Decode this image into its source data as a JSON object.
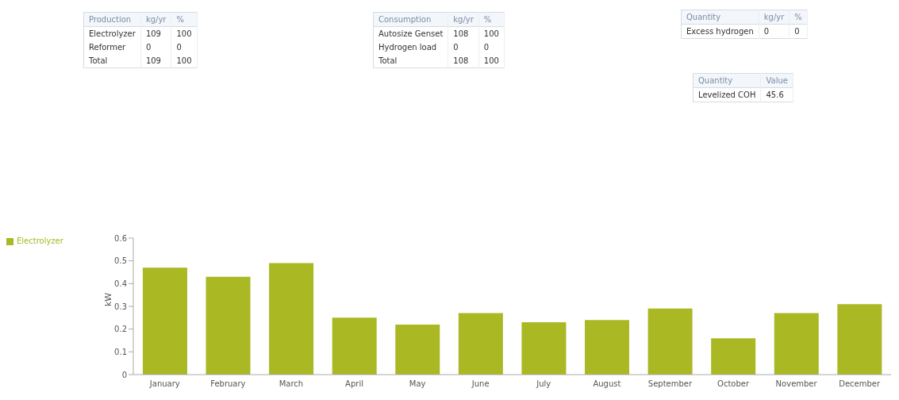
{
  "chart_data": [
    {
      "type": "heatmap",
      "title": "Production",
      "categories": [
        "kg/yr",
        "%"
      ],
      "y_categories": [
        "Electrolyzer",
        "Reformer",
        "Total"
      ],
      "cells": [
        [
          109,
          100
        ],
        [
          0,
          0
        ],
        [
          109,
          100
        ]
      ],
      "data_labels": true
    },
    {
      "type": "heatmap",
      "title": "Consumption",
      "categories": [
        "kg/yr",
        "%"
      ],
      "y_categories": [
        "Autosize Genset",
        "Hydrogen load",
        "Total"
      ],
      "cells": [
        [
          108,
          100
        ],
        [
          0,
          0
        ],
        [
          108,
          100
        ]
      ],
      "data_labels": true
    },
    {
      "type": "heatmap",
      "title": "Quantity",
      "categories": [
        "kg/yr",
        "%"
      ],
      "y_categories": [
        "Excess hydrogen"
      ],
      "cells": [
        [
          0,
          0
        ]
      ],
      "data_labels": true
    },
    {
      "type": "heatmap",
      "title": "Quantity",
      "categories": [
        "Value"
      ],
      "y_categories": [
        "Levelized COH"
      ],
      "cells": [
        [
          45.6
        ]
      ],
      "data_labels": true
    },
    {
      "type": "bar",
      "categories": [
        "January",
        "February",
        "March",
        "April",
        "May",
        "June",
        "July",
        "August",
        "September",
        "October",
        "November",
        "December"
      ],
      "ylabel": "kW",
      "ylim": [
        0,
        0.6
      ],
      "yticks": [
        0,
        0.1,
        0.2,
        0.3,
        0.4,
        0.5,
        0.6
      ],
      "legend": "top left",
      "series": [
        {
          "name": "Electrolyzer",
          "color": "#a9b823",
          "values": [
            0.47,
            0.43,
            0.49,
            0.25,
            0.22,
            0.27,
            0.23,
            0.24,
            0.29,
            0.16,
            0.27,
            0.31
          ]
        }
      ]
    }
  ]
}
